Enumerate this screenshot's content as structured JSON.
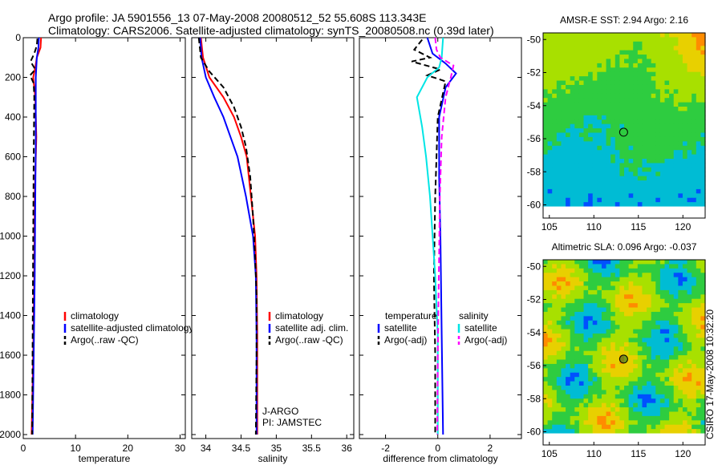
{
  "title_line1": "Argo profile: JA 5901556_13 07-May-2008 20080512_52 55.608S 113.343E",
  "title_line2": "Climatology: CARS2006. Satellite-adjusted climatology: synTS_20080508.nc (0.39d later)",
  "side_label": "CSIRO 17-May-2008 10:32:20",
  "colors": {
    "red": "#ff0000",
    "blue": "#0000ff",
    "black": "#000000",
    "cyan": "#00e5e5",
    "magenta": "#ff00ff"
  },
  "chart_data": [
    {
      "type": "line",
      "xlabel": "temperature",
      "xlim": [
        0,
        31
      ],
      "ylim": [
        0,
        2020
      ],
      "y_reversed": true,
      "xticks": [
        0,
        10,
        20,
        30
      ],
      "yticks": [
        0,
        200,
        400,
        600,
        800,
        1000,
        1200,
        1400,
        1600,
        1800,
        2000
      ],
      "legend": [
        "climatology",
        "satellite-adjusted climatology",
        "Argo(..raw -QC)"
      ],
      "legend_position": "lower-right",
      "series": [
        {
          "name": "climatology",
          "color": "#ff0000",
          "dash": "solid",
          "points": [
            [
              3.4,
              0
            ],
            [
              3.3,
              50
            ],
            [
              2.6,
              100
            ],
            [
              2.3,
              150
            ],
            [
              1.9,
              200
            ],
            [
              2.3,
              300
            ],
            [
              2.5,
              500
            ],
            [
              2.2,
              800
            ],
            [
              2.1,
              1200
            ],
            [
              1.9,
              1600
            ],
            [
              1.6,
              2000
            ]
          ]
        },
        {
          "name": "satellite-adjusted climatology",
          "color": "#0000ff",
          "dash": "solid",
          "points": [
            [
              3.0,
              0
            ],
            [
              2.9,
              50
            ],
            [
              2.6,
              100
            ],
            [
              2.4,
              200
            ],
            [
              2.4,
              500
            ],
            [
              2.3,
              800
            ],
            [
              2.2,
              1200
            ],
            [
              2.0,
              1600
            ],
            [
              1.8,
              2000
            ]
          ]
        },
        {
          "name": "Argo(..raw -QC)",
          "color": "#000000",
          "dash": "dashed",
          "points": [
            [
              2.7,
              5
            ],
            [
              2.6,
              40
            ],
            [
              2.1,
              80
            ],
            [
              1.4,
              120
            ],
            [
              2.3,
              160
            ],
            [
              1.3,
              190
            ],
            [
              2.0,
              230
            ],
            [
              2.1,
              300
            ],
            [
              2.0,
              600
            ],
            [
              1.9,
              1000
            ],
            [
              1.8,
              1500
            ],
            [
              1.7,
              2000
            ]
          ]
        }
      ]
    },
    {
      "type": "line",
      "xlabel": "salinity",
      "xlim": [
        33.8,
        36.1
      ],
      "ylim": [
        0,
        2020
      ],
      "y_reversed": true,
      "xticks": [
        34,
        34.5,
        35,
        35.5,
        36
      ],
      "yticks": [
        0,
        200,
        400,
        600,
        800,
        1000,
        1200,
        1400,
        1600,
        1800,
        2000
      ],
      "legend": [
        "climatology",
        "satellite adj. clim.",
        "Argo(..raw -QC)"
      ],
      "legend_position": "lower-right",
      "annotations": [
        "J-ARGO",
        "PI: JAMSTEC"
      ],
      "series": [
        {
          "name": "climatology",
          "color": "#ff0000",
          "dash": "solid",
          "points": [
            [
              33.93,
              0
            ],
            [
              33.96,
              100
            ],
            [
              34.05,
              200
            ],
            [
              34.25,
              300
            ],
            [
              34.4,
              400
            ],
            [
              34.5,
              500
            ],
            [
              34.58,
              600
            ],
            [
              34.64,
              800
            ],
            [
              34.7,
              1000
            ],
            [
              34.72,
              1200
            ],
            [
              34.73,
              1500
            ],
            [
              34.73,
              2000
            ]
          ]
        },
        {
          "name": "satellite adj. clim.",
          "color": "#0000ff",
          "dash": "solid",
          "points": [
            [
              33.92,
              0
            ],
            [
              33.94,
              100
            ],
            [
              34.0,
              200
            ],
            [
              34.12,
              300
            ],
            [
              34.25,
              400
            ],
            [
              34.35,
              500
            ],
            [
              34.45,
              600
            ],
            [
              34.57,
              800
            ],
            [
              34.67,
              1000
            ],
            [
              34.71,
              1200
            ],
            [
              34.72,
              1500
            ],
            [
              34.72,
              2000
            ]
          ]
        },
        {
          "name": "Argo(..raw -QC)",
          "color": "#000000",
          "dash": "dashed",
          "points": [
            [
              33.9,
              0
            ],
            [
              33.93,
              100
            ],
            [
              34.05,
              170
            ],
            [
              34.25,
              250
            ],
            [
              34.4,
              350
            ],
            [
              34.5,
              450
            ],
            [
              34.57,
              550
            ],
            [
              34.63,
              700
            ],
            [
              34.67,
              900
            ],
            [
              34.7,
              1100
            ],
            [
              34.72,
              1300
            ],
            [
              34.72,
              1600
            ],
            [
              34.71,
              2000
            ]
          ]
        }
      ]
    },
    {
      "type": "line",
      "xlabel": "difference from climatology",
      "xlim": [
        -3,
        3.2
      ],
      "ylim": [
        0,
        2020
      ],
      "y_reversed": true,
      "xticks": [
        -2,
        0,
        2
      ],
      "yticks": [
        0,
        200,
        400,
        600,
        800,
        1000,
        1200,
        1400,
        1600,
        1800,
        2000
      ],
      "legend_groups": [
        {
          "title": "temperature",
          "entries": [
            "satellite",
            "Argo(-adj)"
          ]
        },
        {
          "title": "salinity",
          "entries": [
            "satellite",
            "Argo(-adj)"
          ]
        }
      ],
      "legend_position": "lower-center",
      "series": [
        {
          "name": "satellite",
          "group": "temperature",
          "color": "#0000ff",
          "dash": "solid",
          "points": [
            [
              -0.4,
              0
            ],
            [
              -0.2,
              80
            ],
            [
              0.3,
              130
            ],
            [
              0.7,
              180
            ],
            [
              0.3,
              250
            ],
            [
              0.05,
              400
            ],
            [
              0.05,
              700
            ],
            [
              0.1,
              1000
            ],
            [
              0.15,
              1500
            ],
            [
              0.2,
              2000
            ]
          ]
        },
        {
          "name": "Argo(-adj)",
          "group": "temperature",
          "color": "#000000",
          "dash": "dashed",
          "points": [
            [
              -0.6,
              10
            ],
            [
              -0.9,
              60
            ],
            [
              -0.3,
              100
            ],
            [
              -1.0,
              120
            ],
            [
              0.1,
              160
            ],
            [
              -0.4,
              190
            ],
            [
              0.3,
              220
            ],
            [
              0.0,
              400
            ],
            [
              -0.1,
              800
            ],
            [
              -0.15,
              1200
            ],
            [
              -0.1,
              1600
            ],
            [
              -0.1,
              2000
            ]
          ]
        },
        {
          "name": "satellite",
          "group": "salinity",
          "color": "#00e5e5",
          "dash": "solid",
          "points": [
            [
              0.2,
              0
            ],
            [
              0.15,
              100
            ],
            [
              0.05,
              150
            ],
            [
              -0.4,
              200
            ],
            [
              -0.8,
              300
            ],
            [
              -0.6,
              450
            ],
            [
              -0.45,
              600
            ],
            [
              -0.3,
              800
            ],
            [
              -0.1,
              1200
            ],
            [
              0.0,
              1500
            ],
            [
              0.0,
              2000
            ]
          ]
        },
        {
          "name": "Argo(-adj)",
          "group": "salinity",
          "color": "#ff00ff",
          "dash": "dashed",
          "points": [
            [
              -0.1,
              0
            ],
            [
              -0.05,
              60
            ],
            [
              0.1,
              100
            ],
            [
              0.6,
              140
            ],
            [
              0.5,
              200
            ],
            [
              0.3,
              300
            ],
            [
              0.15,
              500
            ],
            [
              0.08,
              800
            ],
            [
              0.04,
              1200
            ],
            [
              0.0,
              1600
            ],
            [
              -0.02,
              2000
            ]
          ]
        }
      ]
    },
    {
      "type": "heatmap",
      "title": "AMSR-E SST: 2.94 Argo: 2.16",
      "xlim": [
        104.3,
        122.5
      ],
      "ylim": [
        -60.8,
        -49.6
      ],
      "xticks": [
        105,
        110,
        115,
        120
      ],
      "yticks": [
        -50,
        -52,
        -54,
        -56,
        -58,
        -60
      ],
      "marker": [
        113.343,
        -55.608
      ],
      "colors": [
        "#0050ff",
        "#00bcd4",
        "#2ecc40",
        "#a8e000",
        "#e8d000",
        "#ff8c00",
        "#d84a00"
      ]
    },
    {
      "type": "heatmap",
      "title": "Altimetric SLA: 0.096 Argo: -0.037",
      "xlim": [
        104.3,
        122.5
      ],
      "ylim": [
        -60.8,
        -49.6
      ],
      "xticks": [
        105,
        110,
        115,
        120
      ],
      "yticks": [
        -50,
        -52,
        -54,
        -56,
        -58,
        -60
      ],
      "marker": [
        113.343,
        -55.608
      ],
      "colors": [
        "#0050ff",
        "#00bcd4",
        "#2ecc40",
        "#a8e000",
        "#e8d000",
        "#ff8c00",
        "#d84a00"
      ]
    }
  ]
}
